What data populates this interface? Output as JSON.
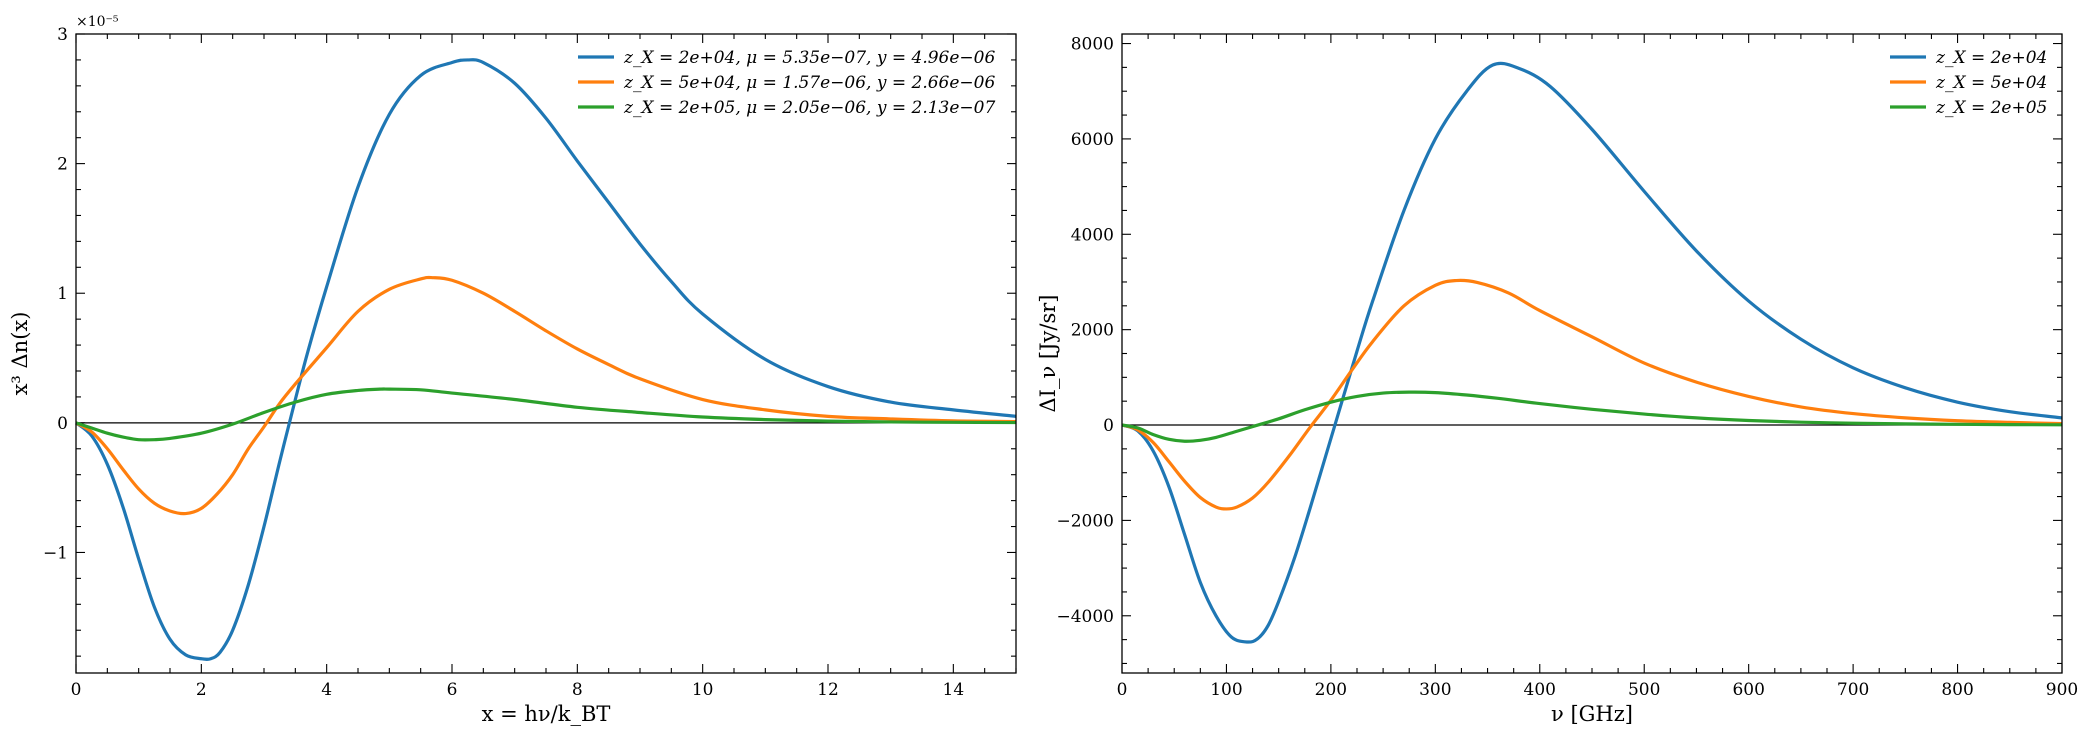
{
  "chart_data": [
    {
      "type": "line",
      "xlabel": "x = hν/k_BT",
      "ylabel": "x³ Δn(x)",
      "offset_text": "×10⁻⁵",
      "xlim": [
        0,
        15
      ],
      "ylim": [
        -1.93,
        3.0
      ],
      "xticks": [
        0,
        2,
        4,
        6,
        8,
        10,
        12,
        14
      ],
      "xtick_labels": [
        "0",
        "2",
        "4",
        "6",
        "8",
        "10",
        "12",
        "14"
      ],
      "yticks": [
        -1,
        0,
        1,
        2,
        3
      ],
      "ytick_labels": [
        "−1",
        "0",
        "1",
        "2",
        "3"
      ],
      "grid": false,
      "legend_position": "top-right",
      "zero_line": true,
      "series": [
        {
          "name": "z_X = 2e+04, μ = 5.35e−07, y = 4.96e−06",
          "color": "#1f77b4",
          "x": [
            0,
            0.25,
            0.5,
            0.75,
            1,
            1.25,
            1.5,
            1.75,
            2,
            2.15,
            2.3,
            2.5,
            2.75,
            3,
            3.25,
            3.5,
            3.7,
            4,
            4.5,
            5,
            5.5,
            6,
            6.25,
            6.5,
            7,
            7.5,
            8,
            8.5,
            9,
            9.5,
            10,
            11,
            12,
            13,
            14,
            15
          ],
          "y": [
            0,
            -0.1,
            -0.32,
            -0.65,
            -1.05,
            -1.42,
            -1.67,
            -1.79,
            -1.82,
            -1.82,
            -1.77,
            -1.6,
            -1.25,
            -0.8,
            -0.3,
            0.18,
            0.55,
            1.05,
            1.82,
            2.38,
            2.68,
            2.78,
            2.8,
            2.78,
            2.62,
            2.35,
            2.02,
            1.7,
            1.38,
            1.09,
            0.84,
            0.49,
            0.28,
            0.16,
            0.1,
            0.05
          ]
        },
        {
          "name": "z_X = 5e+04, μ = 1.57e−06, y = 2.66e−06",
          "color": "#ff7f0e",
          "x": [
            0,
            0.25,
            0.5,
            0.75,
            1,
            1.25,
            1.5,
            1.75,
            2,
            2.25,
            2.5,
            2.75,
            3,
            3.25,
            3.5,
            4,
            4.5,
            5,
            5.5,
            5.7,
            6,
            6.5,
            7,
            7.5,
            8,
            8.5,
            9,
            10,
            11,
            12,
            13,
            14,
            15
          ],
          "y": [
            0,
            -0.07,
            -0.2,
            -0.36,
            -0.51,
            -0.62,
            -0.68,
            -0.7,
            -0.66,
            -0.55,
            -0.4,
            -0.2,
            -0.03,
            0.15,
            0.3,
            0.58,
            0.86,
            1.03,
            1.11,
            1.12,
            1.1,
            1.0,
            0.86,
            0.71,
            0.57,
            0.45,
            0.34,
            0.18,
            0.1,
            0.05,
            0.03,
            0.015,
            0.01
          ]
        },
        {
          "name": "z_X = 2e+05, μ = 2.05e−06, y = 2.13e−07",
          "color": "#2ca02c",
          "x": [
            0,
            0.25,
            0.5,
            0.75,
            1,
            1.25,
            1.5,
            2,
            2.5,
            3,
            3.5,
            4,
            4.5,
            4.85,
            5,
            5.5,
            6,
            7,
            8,
            9,
            10,
            11,
            12,
            13,
            14,
            15
          ],
          "y": [
            0,
            -0.04,
            -0.08,
            -0.11,
            -0.13,
            -0.13,
            -0.12,
            -0.08,
            -0.01,
            0.08,
            0.16,
            0.22,
            0.25,
            0.26,
            0.26,
            0.255,
            0.23,
            0.18,
            0.12,
            0.08,
            0.045,
            0.025,
            0.013,
            0.007,
            0.004,
            0.002
          ]
        }
      ]
    },
    {
      "type": "line",
      "xlabel": "ν [GHz]",
      "ylabel": "ΔI_ν [Jy/sr]",
      "xlim": [
        0,
        900
      ],
      "ylim": [
        -5200,
        8200
      ],
      "xticks": [
        0,
        100,
        200,
        300,
        400,
        500,
        600,
        700,
        800,
        900
      ],
      "xtick_labels": [
        "0",
        "100",
        "200",
        "300",
        "400",
        "500",
        "600",
        "700",
        "800",
        "900"
      ],
      "yticks": [
        -4000,
        -2000,
        0,
        2000,
        4000,
        6000,
        8000
      ],
      "ytick_labels": [
        "−4000",
        "−2000",
        "0",
        "2000",
        "4000",
        "6000",
        "8000"
      ],
      "grid": false,
      "legend_position": "top-right",
      "zero_line": true,
      "series": [
        {
          "name": "z_X = 2e+04",
          "color": "#1f77b4",
          "x": [
            0,
            15,
            30,
            45,
            60,
            75,
            90,
            105,
            120,
            130,
            140,
            150,
            165,
            180,
            195,
            210,
            225,
            240,
            270,
            300,
            330,
            355,
            380,
            410,
            450,
            500,
            550,
            600,
            650,
            700,
            750,
            800,
            850,
            900
          ],
          "y": [
            0,
            -120,
            -550,
            -1300,
            -2300,
            -3300,
            -4000,
            -4450,
            -4550,
            -4480,
            -4200,
            -3700,
            -2800,
            -1750,
            -650,
            450,
            1550,
            2600,
            4500,
            6000,
            7000,
            7550,
            7480,
            7100,
            6200,
            4900,
            3650,
            2600,
            1800,
            1200,
            780,
            480,
            280,
            150
          ]
        },
        {
          "name": "z_X = 5e+04",
          "color": "#ff7f0e",
          "x": [
            0,
            15,
            30,
            45,
            60,
            75,
            90,
            100,
            110,
            125,
            140,
            160,
            180,
            200,
            220,
            240,
            270,
            300,
            320,
            340,
            370,
            400,
            450,
            500,
            550,
            600,
            650,
            700,
            750,
            800,
            850,
            900
          ],
          "y": [
            0,
            -100,
            -370,
            -770,
            -1180,
            -1520,
            -1720,
            -1760,
            -1720,
            -1530,
            -1200,
            -650,
            -50,
            520,
            1150,
            1750,
            2500,
            2930,
            3030,
            2990,
            2770,
            2400,
            1850,
            1300,
            900,
            600,
            380,
            240,
            150,
            90,
            55,
            30
          ]
        },
        {
          "name": "z_X = 2e+05",
          "color": "#2ca02c",
          "x": [
            0,
            15,
            30,
            45,
            60,
            75,
            90,
            110,
            130,
            150,
            175,
            200,
            225,
            250,
            275,
            300,
            330,
            360,
            400,
            450,
            500,
            550,
            600,
            650,
            700,
            750,
            800,
            850,
            900
          ],
          "y": [
            0,
            -60,
            -200,
            -300,
            -340,
            -320,
            -260,
            -130,
            0,
            130,
            320,
            480,
            600,
            670,
            690,
            680,
            630,
            560,
            450,
            330,
            230,
            150,
            95,
            60,
            38,
            24,
            15,
            9,
            5
          ]
        }
      ]
    }
  ]
}
